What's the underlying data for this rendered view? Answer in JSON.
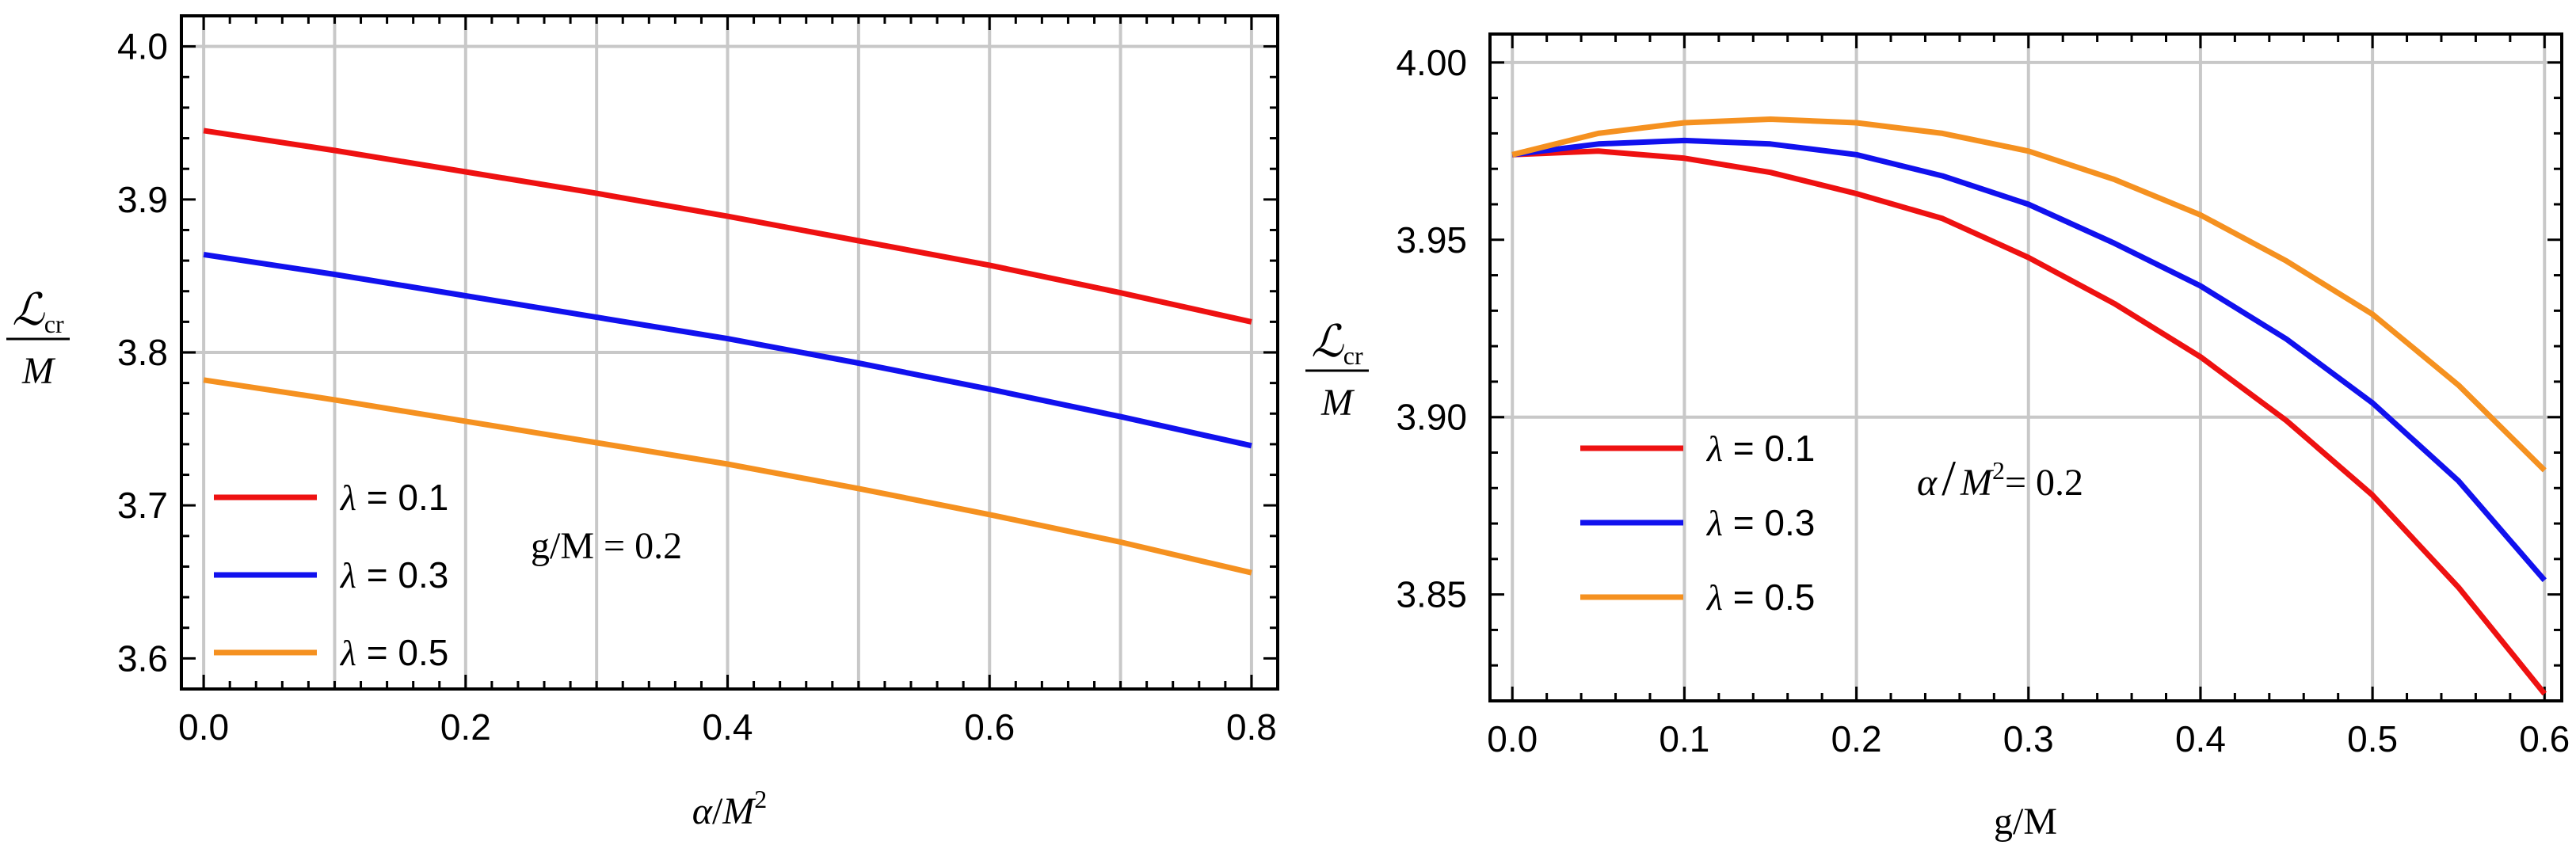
{
  "chart_data": [
    {
      "type": "line",
      "xlabel": "α/M²",
      "xlabel_parts": {
        "base": "α/M",
        "sup": "2"
      },
      "ylabel": "ℒcr / M",
      "ylabel_parts": {
        "num": "ℒ",
        "sub": "cr",
        "den": "M"
      },
      "xlim": [
        -0.017,
        0.82
      ],
      "ylim": [
        3.58,
        4.02
      ],
      "xticks": [
        0.0,
        0.2,
        0.4,
        0.6,
        0.8
      ],
      "xtick_labels": [
        "0.0",
        "0.2",
        "0.4",
        "0.6",
        "0.8"
      ],
      "xtick_minor": 0.02,
      "xgrid": [
        0.0,
        0.1,
        0.2,
        0.3,
        0.4,
        0.5,
        0.6,
        0.7,
        0.8
      ],
      "yticks": [
        3.6,
        3.7,
        3.8,
        3.9,
        4.0
      ],
      "ytick_labels": [
        "3.6",
        "3.7",
        "3.8",
        "3.9",
        "4.0"
      ],
      "ytick_minor": 0.02,
      "ygrid": [
        3.8,
        4.0
      ],
      "annotation": "g/M = 0.2",
      "legend": {
        "placement": "bottom-left"
      },
      "x": [
        0.0,
        0.1,
        0.2,
        0.3,
        0.4,
        0.5,
        0.6,
        0.7,
        0.8
      ],
      "series": [
        {
          "name": "λ = 0.1",
          "color": "#ee1111",
          "values": [
            3.945,
            3.932,
            3.918,
            3.904,
            3.889,
            3.873,
            3.857,
            3.839,
            3.82
          ]
        },
        {
          "name": "λ = 0.3",
          "color": "#1111ee",
          "values": [
            3.864,
            3.851,
            3.837,
            3.823,
            3.809,
            3.793,
            3.776,
            3.758,
            3.739
          ]
        },
        {
          "name": "λ = 0.5",
          "color": "#f59120",
          "values": [
            3.782,
            3.769,
            3.755,
            3.741,
            3.727,
            3.711,
            3.694,
            3.676,
            3.656
          ]
        }
      ]
    },
    {
      "type": "line",
      "xlabel": "g/M",
      "ylabel": "ℒcr / M",
      "ylabel_parts": {
        "num": "ℒ",
        "sub": "cr",
        "den": "M"
      },
      "xlim": [
        -0.013,
        0.61
      ],
      "ylim": [
        3.82,
        4.008
      ],
      "xticks": [
        0.0,
        0.1,
        0.2,
        0.3,
        0.4,
        0.5,
        0.6
      ],
      "xtick_labels": [
        "0.0",
        "0.1",
        "0.2",
        "0.3",
        "0.4",
        "0.5",
        "0.6"
      ],
      "xtick_minor": 0.02,
      "xgrid": [
        0.0,
        0.1,
        0.2,
        0.3,
        0.4,
        0.5,
        0.6
      ],
      "yticks": [
        3.85,
        3.9,
        3.95,
        4.0
      ],
      "ytick_labels": [
        "3.85",
        "3.90",
        "3.95",
        "4.00"
      ],
      "ytick_minor": 0.01,
      "ygrid": [
        3.9,
        4.0
      ],
      "annotation": "α/M² = 0.2",
      "annotation_parts": {
        "base": "α",
        "slash": "/",
        "rest": "M",
        "sup": "2",
        "tail": "= 0.2"
      },
      "legend": {
        "placement": "middle-left"
      },
      "x": [
        0.0,
        0.05,
        0.1,
        0.15,
        0.2,
        0.25,
        0.3,
        0.35,
        0.4,
        0.45,
        0.5,
        0.55,
        0.6
      ],
      "series": [
        {
          "name": "λ = 0.1",
          "color": "#ee1111",
          "values": [
            3.974,
            3.975,
            3.973,
            3.969,
            3.963,
            3.956,
            3.945,
            3.932,
            3.917,
            3.899,
            3.878,
            3.852,
            3.822
          ]
        },
        {
          "name": "λ = 0.3",
          "color": "#1111ee",
          "values": [
            3.974,
            3.977,
            3.978,
            3.977,
            3.974,
            3.968,
            3.96,
            3.949,
            3.937,
            3.922,
            3.904,
            3.882,
            3.854
          ]
        },
        {
          "name": "λ = 0.5",
          "color": "#f59120",
          "values": [
            3.974,
            3.98,
            3.983,
            3.984,
            3.983,
            3.98,
            3.975,
            3.967,
            3.957,
            3.944,
            3.929,
            3.909,
            3.885
          ]
        }
      ]
    }
  ]
}
